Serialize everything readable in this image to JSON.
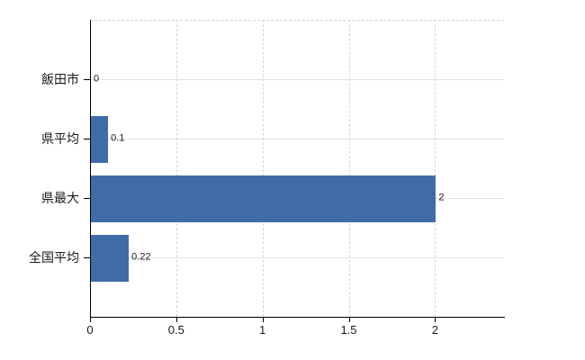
{
  "chart_data": {
    "type": "bar",
    "orientation": "horizontal",
    "categories": [
      "飯田市",
      "県平均",
      "県最大",
      "全国平均"
    ],
    "values": [
      0,
      0.1,
      2,
      0.22
    ],
    "value_labels": [
      "0",
      "0.1",
      "2",
      "0.22"
    ],
    "x_ticks": [
      0,
      0.5,
      1,
      1.5,
      2
    ],
    "x_tick_labels": [
      "0",
      "0.5",
      "1",
      "1.5",
      "2"
    ],
    "xlim": [
      0,
      2.4
    ],
    "grid": true,
    "legend": "none",
    "colors": {
      "bar": "#3f6ca6",
      "horizontal_gridline": "#dde3dd",
      "vertical_gridline": "#d4d8d4",
      "axis": "#000000",
      "text": "#1a1a1a",
      "background": "#ffffff"
    }
  }
}
